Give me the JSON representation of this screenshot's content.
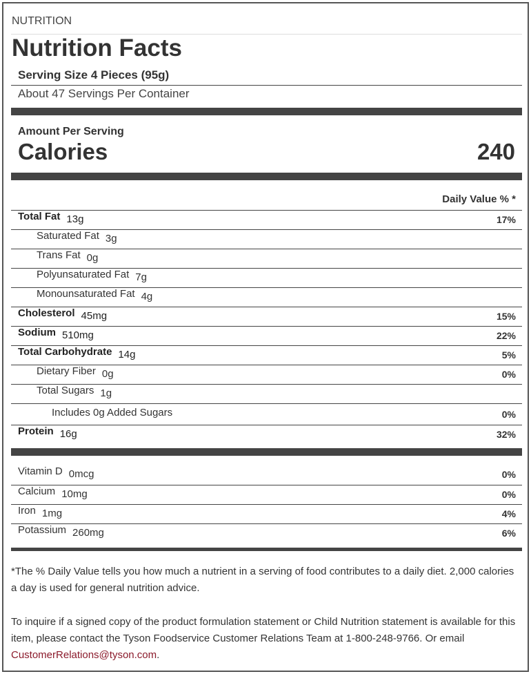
{
  "section_label": "NUTRITION",
  "title": "Nutrition Facts",
  "serving_size": "Serving Size 4 Pieces (95g)",
  "servings_per_container": "About 47 Servings Per Container",
  "amount_per_serving": "Amount Per Serving",
  "calories_label": "Calories",
  "calories_value": "240",
  "daily_value_header": "Daily Value % *",
  "nutrients": [
    {
      "label": "Total Fat",
      "amount": "13g",
      "dv": "17%",
      "bold": true,
      "indent": 0
    },
    {
      "label": "Saturated Fat",
      "amount": "3g",
      "dv": "",
      "bold": false,
      "indent": 1
    },
    {
      "label": "Trans Fat",
      "amount": "0g",
      "dv": "",
      "bold": false,
      "indent": 1
    },
    {
      "label": "Polyunsaturated Fat",
      "amount": "7g",
      "dv": "",
      "bold": false,
      "indent": 1
    },
    {
      "label": "Monounsaturated Fat",
      "amount": "4g",
      "dv": "",
      "bold": false,
      "indent": 1
    },
    {
      "label": "Cholesterol",
      "amount": "45mg",
      "dv": "15%",
      "bold": true,
      "indent": 0
    },
    {
      "label": "Sodium",
      "amount": "510mg",
      "dv": "22%",
      "bold": true,
      "indent": 0
    },
    {
      "label": "Total Carbohydrate",
      "amount": "14g",
      "dv": "5%",
      "bold": true,
      "indent": 0
    },
    {
      "label": "Dietary Fiber",
      "amount": "0g",
      "dv": "0%",
      "bold": false,
      "indent": 1
    },
    {
      "label": "Total Sugars",
      "amount": "1g",
      "dv": "",
      "bold": false,
      "indent": 1
    },
    {
      "label": "Includes 0g Added Sugars",
      "amount": "",
      "dv": "0%",
      "bold": false,
      "indent": 2
    },
    {
      "label": "Protein",
      "amount": "16g",
      "dv": "32%",
      "bold": true,
      "indent": 0
    }
  ],
  "vitamins": [
    {
      "label": "Vitamin D",
      "amount": "0mcg",
      "dv": "0%"
    },
    {
      "label": "Calcium",
      "amount": "10mg",
      "dv": "0%"
    },
    {
      "label": "Iron",
      "amount": "1mg",
      "dv": "4%"
    },
    {
      "label": "Potassium",
      "amount": "260mg",
      "dv": "6%"
    }
  ],
  "footnote": "*The % Daily Value tells you how much a nutrient in a serving of food contributes to a daily diet. 2,000 calories a day is used for general nutrition advice.",
  "inquiry": "To inquire if a signed copy of the product formulation statement or Child Nutrition statement is available for this item, please contact the Tyson Foodservice Customer Relations Team at 1-800-248-9766. Or email ",
  "email": "CustomerRelations@tyson.com",
  "inquiry_end": ".",
  "colors": {
    "bar": "#444444",
    "link": "#8b1a2b"
  }
}
